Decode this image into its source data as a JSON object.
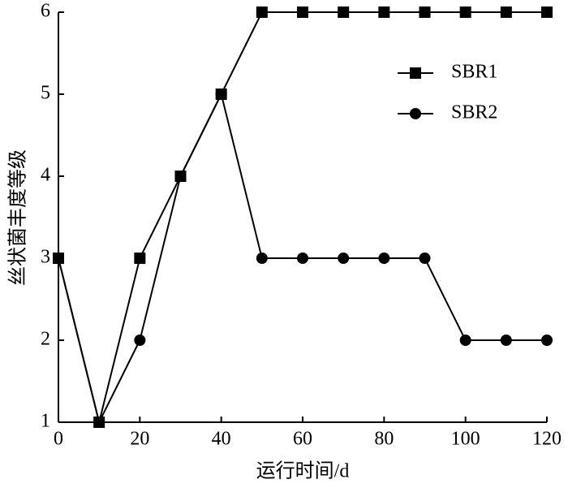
{
  "chart_data": {
    "type": "line",
    "x_label": "运行时间/d",
    "y_label": "丝状菌丰度等级",
    "x": [
      0,
      10,
      20,
      30,
      40,
      50,
      60,
      70,
      80,
      90,
      100,
      110,
      120
    ],
    "series": [
      {
        "name": "SBR1",
        "color": "#000000",
        "marker": "square",
        "values": [
          3,
          1,
          3,
          4,
          5,
          6,
          6,
          6,
          6,
          6,
          6,
          6,
          6
        ]
      },
      {
        "name": "SBR2",
        "color": "#000000",
        "marker": "circle",
        "values": [
          3,
          1,
          2,
          4,
          5,
          3,
          3,
          3,
          3,
          3,
          2,
          2,
          2
        ]
      }
    ],
    "xlim": [
      0,
      120
    ],
    "xticks": [
      0,
      20,
      40,
      60,
      80,
      100,
      120
    ],
    "ylim": [
      1,
      6
    ],
    "yticks": [
      1,
      2,
      3,
      4,
      5,
      6
    ],
    "grid": false,
    "legend": "upper right"
  }
}
